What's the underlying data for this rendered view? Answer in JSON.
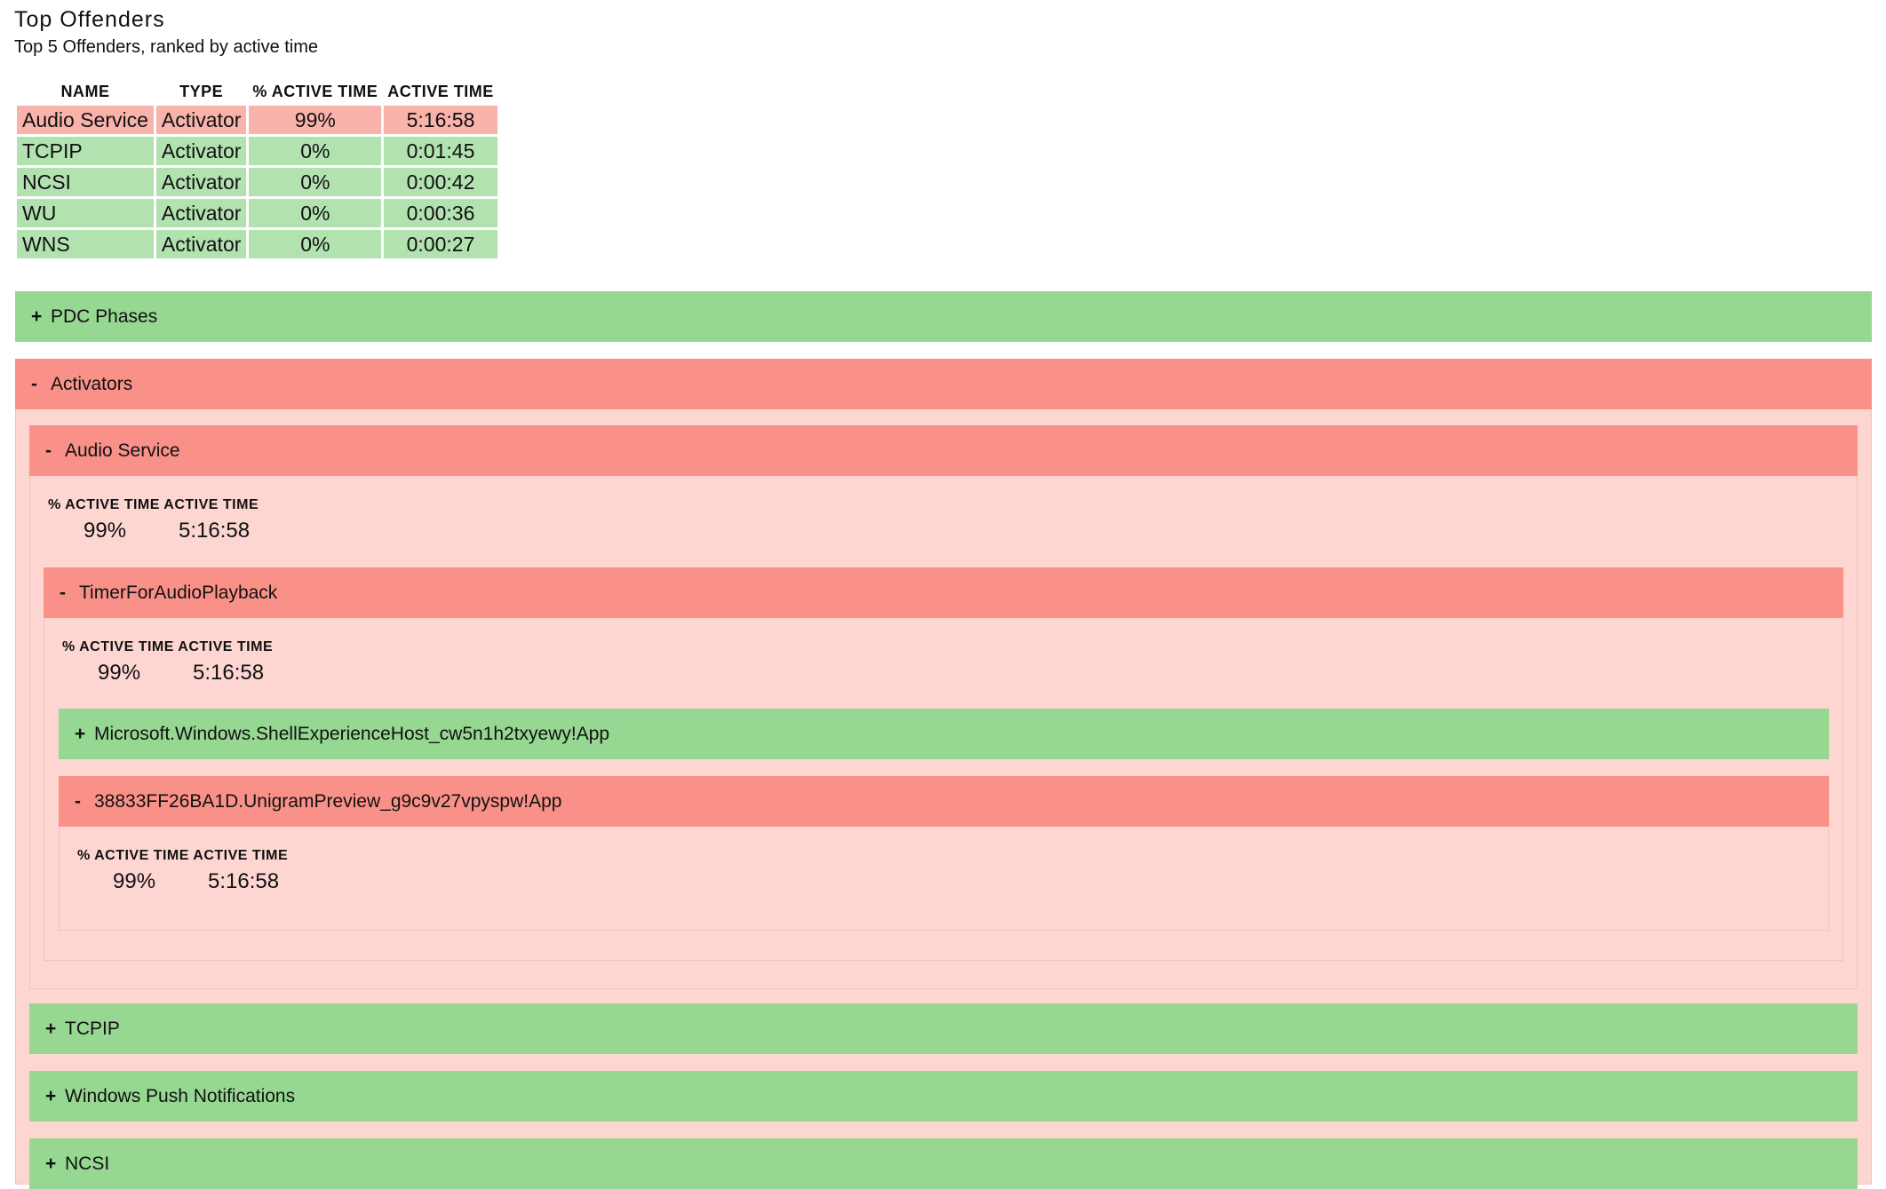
{
  "header": {
    "title": "Top Offenders",
    "subtitle": "Top 5 Offenders, ranked by active time"
  },
  "top_table": {
    "columns": [
      "NAME",
      "TYPE",
      "% ACTIVE TIME",
      "ACTIVE TIME"
    ],
    "rows": [
      {
        "name": "Audio Service",
        "type": "Activator",
        "pct": "99%",
        "time": "5:16:58",
        "status": "red"
      },
      {
        "name": "TCPIP",
        "type": "Activator",
        "pct": "0%",
        "time": "0:01:45",
        "status": "green"
      },
      {
        "name": "NCSI",
        "type": "Activator",
        "pct": "0%",
        "time": "0:00:42",
        "status": "green"
      },
      {
        "name": "WU",
        "type": "Activator",
        "pct": "0%",
        "time": "0:00:36",
        "status": "green"
      },
      {
        "name": "WNS",
        "type": "Activator",
        "pct": "0%",
        "time": "0:00:27",
        "status": "green"
      }
    ]
  },
  "colors": {
    "bar_green": "#96d892",
    "bar_red": "#f99189",
    "row_green": "#b2e2b0",
    "row_red": "#f9b3ab",
    "panel_pink": "#fdd6d2"
  },
  "sections": {
    "pdc_phases": {
      "toggle": "+",
      "label": "PDC Phases"
    },
    "activators": {
      "toggle": "-",
      "label": "Activators"
    },
    "audio_service": {
      "toggle": "-",
      "label": "Audio Service",
      "pct_header": "% ACTIVE TIME",
      "time_header": "ACTIVE TIME",
      "pct": "99%",
      "time": "5:16:58"
    },
    "timer": {
      "toggle": "-",
      "label": "TimerForAudioPlayback",
      "pct_header": "% ACTIVE TIME",
      "time_header": "ACTIVE TIME",
      "pct": "99%",
      "time": "5:16:58"
    },
    "shell_host": {
      "toggle": "+",
      "label": "Microsoft.Windows.ShellExperienceHost_cw5n1h2txyewy!App"
    },
    "unigram": {
      "toggle": "-",
      "label": "38833FF26BA1D.UnigramPreview_g9c9v27vpyspw!App",
      "pct_header": "% ACTIVE TIME",
      "time_header": "ACTIVE TIME",
      "pct": "99%",
      "time": "5:16:58"
    },
    "tcpip": {
      "toggle": "+",
      "label": "TCPIP"
    },
    "wpn": {
      "toggle": "+",
      "label": "Windows Push Notifications"
    },
    "ncsi": {
      "toggle": "+",
      "label": "NCSI"
    }
  }
}
